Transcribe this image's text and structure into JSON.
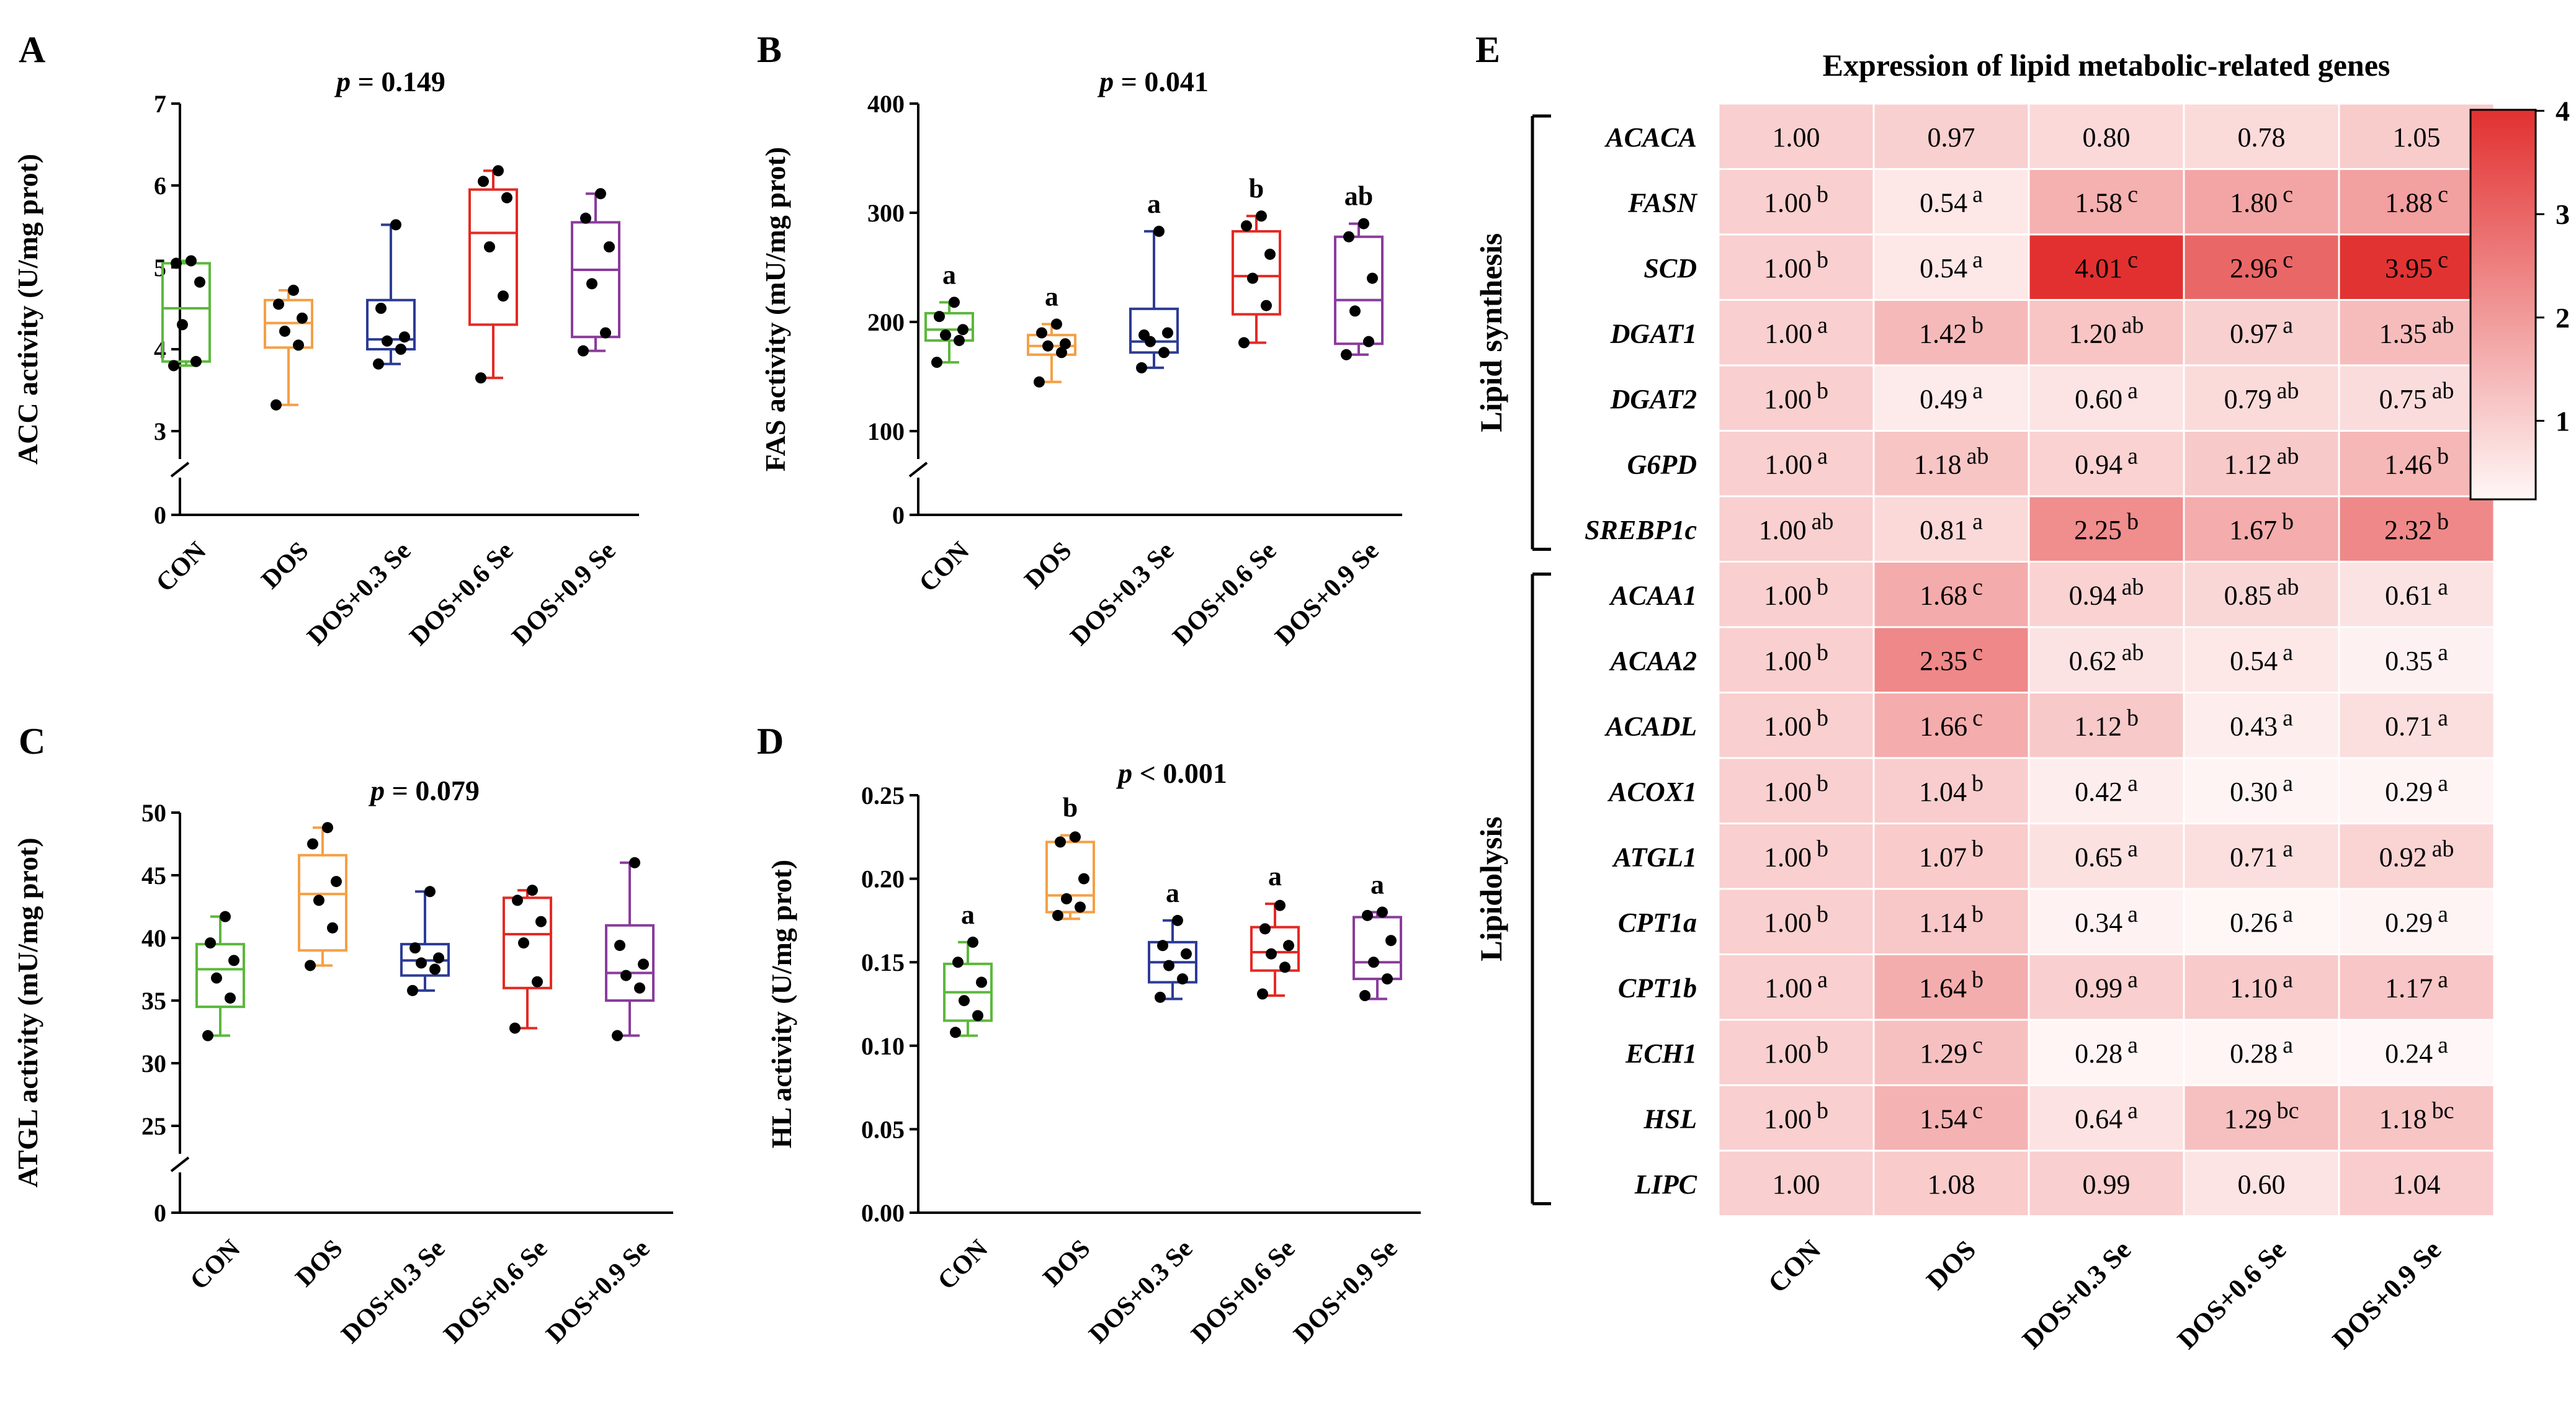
{
  "groups": [
    "CON",
    "DOS",
    "DOS+0.3 Se",
    "DOS+0.6 Se",
    "DOS+0.9 Se"
  ],
  "group_colors": [
    "#5cb83c",
    "#f4a046",
    "#2c3c94",
    "#e32a24",
    "#8a3c9c"
  ],
  "chart_data": [
    {
      "panel": "A",
      "type": "box",
      "pvalue": "p = 0.149",
      "p_symbol": "p",
      "p_rest": " = 0.149",
      "ylabel": "ACC activity (U/mg prot)",
      "ylim": [
        3,
        7
      ],
      "ticks": [
        "3",
        "4",
        "5",
        "6",
        "7"
      ],
      "zero_label": "0",
      "letters": [
        "",
        "",
        "",
        "",
        ""
      ],
      "boxes": [
        {
          "q1": 3.85,
          "median": 4.5,
          "q3": 5.05,
          "min": 3.8,
          "max": 5.08,
          "points": [
            3.8,
            3.85,
            4.3,
            4.82,
            5.05,
            5.08
          ]
        },
        {
          "q1": 4.02,
          "median": 4.32,
          "q3": 4.6,
          "min": 3.32,
          "max": 4.72,
          "points": [
            3.32,
            4.05,
            4.22,
            4.38,
            4.55,
            4.72
          ]
        },
        {
          "q1": 4.0,
          "median": 4.12,
          "q3": 4.6,
          "min": 3.82,
          "max": 5.52,
          "points": [
            3.82,
            4.0,
            4.1,
            4.15,
            4.5,
            5.52
          ]
        },
        {
          "q1": 4.3,
          "median": 5.42,
          "q3": 5.95,
          "min": 3.65,
          "max": 6.18,
          "points": [
            3.65,
            4.65,
            5.25,
            5.85,
            6.05,
            6.18
          ]
        },
        {
          "q1": 4.15,
          "median": 4.97,
          "q3": 5.55,
          "min": 3.98,
          "max": 5.9,
          "points": [
            3.98,
            4.2,
            4.8,
            5.25,
            5.6,
            5.9
          ]
        }
      ]
    },
    {
      "panel": "B",
      "type": "box",
      "pvalue": "p = 0.041",
      "p_symbol": "p",
      "p_rest": " = 0.041",
      "ylabel": "FAS activity (mU/mg prot)",
      "ylim": [
        100,
        400
      ],
      "ticks": [
        "100",
        "200",
        "300",
        "400"
      ],
      "zero_label": "0",
      "letters": [
        "a",
        "a",
        "a",
        "b",
        "ab"
      ],
      "boxes": [
        {
          "q1": 183,
          "median": 193,
          "q3": 208,
          "min": 163,
          "max": 218,
          "points": [
            163,
            183,
            188,
            193,
            205,
            218
          ]
        },
        {
          "q1": 170,
          "median": 178,
          "q3": 188,
          "min": 145,
          "max": 198,
          "points": [
            145,
            172,
            178,
            180,
            190,
            198
          ]
        },
        {
          "q1": 172,
          "median": 182,
          "q3": 212,
          "min": 158,
          "max": 283,
          "points": [
            158,
            172,
            182,
            190,
            188,
            283
          ]
        },
        {
          "q1": 207,
          "median": 242,
          "q3": 283,
          "min": 181,
          "max": 297,
          "points": [
            181,
            215,
            240,
            262,
            288,
            297
          ]
        },
        {
          "q1": 180,
          "median": 220,
          "q3": 278,
          "min": 170,
          "max": 290,
          "points": [
            170,
            182,
            210,
            240,
            278,
            290
          ]
        }
      ]
    },
    {
      "panel": "C",
      "type": "box",
      "pvalue": "p = 0.079",
      "p_symbol": "p",
      "p_rest": " = 0.079",
      "ylabel": "ATGL activity (mU/mg prot)",
      "ylim": [
        25,
        50
      ],
      "ticks": [
        "25",
        "30",
        "35",
        "40",
        "45",
        "50"
      ],
      "zero_label": "0",
      "letters": [
        "",
        "",
        "",
        "",
        ""
      ],
      "boxes": [
        {
          "q1": 34.5,
          "median": 37.5,
          "q3": 39.5,
          "min": 32.2,
          "max": 41.7,
          "points": [
            32.2,
            35.2,
            36.8,
            38.2,
            39.6,
            41.7
          ]
        },
        {
          "q1": 39.0,
          "median": 43.5,
          "q3": 46.6,
          "min": 37.8,
          "max": 48.8,
          "points": [
            37.8,
            40.8,
            43.0,
            44.5,
            47.5,
            48.8
          ]
        },
        {
          "q1": 37.0,
          "median": 38.2,
          "q3": 39.5,
          "min": 35.8,
          "max": 43.7,
          "points": [
            35.8,
            37.5,
            38.0,
            38.4,
            39.2,
            43.7
          ]
        },
        {
          "q1": 36.0,
          "median": 40.3,
          "q3": 43.2,
          "min": 32.8,
          "max": 43.8,
          "points": [
            32.8,
            36.5,
            39.6,
            41.3,
            43.0,
            43.8
          ]
        },
        {
          "q1": 35.0,
          "median": 37.2,
          "q3": 41.0,
          "min": 32.2,
          "max": 46.0,
          "points": [
            32.2,
            36.0,
            37.0,
            37.9,
            39.4,
            46.0
          ]
        }
      ]
    },
    {
      "panel": "D",
      "type": "box",
      "pvalue": "p < 0.001",
      "p_symbol": "p",
      "p_rest": " < 0.001",
      "ylabel": "HL activity (U/mg prot)",
      "ylim": [
        0,
        0.25
      ],
      "ticks": [
        "0.00",
        "0.05",
        "0.10",
        "0.15",
        "0.20",
        "0.25"
      ],
      "zero_label": "",
      "letters": [
        "a",
        "b",
        "a",
        "a",
        "a"
      ],
      "boxes": [
        {
          "q1": 0.115,
          "median": 0.132,
          "q3": 0.149,
          "min": 0.106,
          "max": 0.162,
          "points": [
            0.108,
            0.118,
            0.127,
            0.138,
            0.15,
            0.162
          ]
        },
        {
          "q1": 0.18,
          "median": 0.19,
          "q3": 0.222,
          "min": 0.176,
          "max": 0.226,
          "points": [
            0.178,
            0.183,
            0.188,
            0.2,
            0.222,
            0.225
          ]
        },
        {
          "q1": 0.138,
          "median": 0.15,
          "q3": 0.162,
          "min": 0.128,
          "max": 0.175,
          "points": [
            0.129,
            0.14,
            0.148,
            0.155,
            0.16,
            0.175
          ]
        },
        {
          "q1": 0.145,
          "median": 0.156,
          "q3": 0.171,
          "min": 0.13,
          "max": 0.185,
          "points": [
            0.131,
            0.147,
            0.155,
            0.16,
            0.17,
            0.184
          ]
        },
        {
          "q1": 0.14,
          "median": 0.15,
          "q3": 0.177,
          "min": 0.128,
          "max": 0.18,
          "points": [
            0.13,
            0.14,
            0.15,
            0.163,
            0.178,
            0.18
          ]
        }
      ]
    },
    {
      "panel": "E",
      "type": "heatmap",
      "title": "Expression of lipid metabolic-related genes",
      "columns": [
        "CON",
        "DOS",
        "DOS+0.3 Se",
        "DOS+0.6 Se",
        "DOS+0.9 Se"
      ],
      "categories": [
        {
          "label": "Lipid synthesis",
          "from": 0,
          "to": 6
        },
        {
          "label": "Lipidolysis",
          "from": 7,
          "to": 16
        }
      ],
      "rows": [
        {
          "gene": "ACACA",
          "values": [
            1.0,
            0.97,
            0.8,
            0.78,
            1.05
          ],
          "display": [
            "1.00",
            "0.97",
            "0.80",
            "0.78",
            "1.05"
          ],
          "sup": [
            "",
            "",
            "",
            "",
            ""
          ]
        },
        {
          "gene": "FASN",
          "values": [
            1.0,
            0.54,
            1.58,
            1.8,
            1.88
          ],
          "display": [
            "1.00",
            "0.54",
            "1.58",
            "1.80",
            "1.88"
          ],
          "sup": [
            "b",
            "a",
            "c",
            "c",
            "c"
          ]
        },
        {
          "gene": "SCD",
          "values": [
            1.0,
            0.54,
            4.01,
            2.96,
            3.95
          ],
          "display": [
            "1.00",
            "0.54",
            "4.01",
            "2.96",
            "3.95"
          ],
          "sup": [
            "b",
            "a",
            "c",
            "c",
            "c"
          ]
        },
        {
          "gene": "DGAT1",
          "values": [
            1.0,
            1.42,
            1.2,
            0.97,
            1.35
          ],
          "display": [
            "1.00",
            "1.42",
            "1.20",
            "0.97",
            "1.35"
          ],
          "sup": [
            "a",
            "b",
            "ab",
            "a",
            "ab"
          ]
        },
        {
          "gene": "DGAT2",
          "values": [
            1.0,
            0.49,
            0.6,
            0.79,
            0.75
          ],
          "display": [
            "1.00",
            "0.49",
            "0.60",
            "0.79",
            "0.75"
          ],
          "sup": [
            "b",
            "a",
            "a",
            "ab",
            "ab"
          ]
        },
        {
          "gene": "G6PD",
          "values": [
            1.0,
            1.18,
            0.94,
            1.12,
            1.46
          ],
          "display": [
            "1.00",
            "1.18",
            "0.94",
            "1.12",
            "1.46"
          ],
          "sup": [
            "a",
            "ab",
            "a",
            "ab",
            "b"
          ]
        },
        {
          "gene": "SREBP1c",
          "values": [
            1.0,
            0.81,
            2.25,
            1.67,
            2.32
          ],
          "display": [
            "1.00",
            "0.81",
            "2.25",
            "1.67",
            "2.32"
          ],
          "sup": [
            "ab",
            "a",
            "b",
            "b",
            "b"
          ]
        },
        {
          "gene": "ACAA1",
          "values": [
            1.0,
            1.68,
            0.94,
            0.85,
            0.61
          ],
          "display": [
            "1.00",
            "1.68",
            "0.94",
            "0.85",
            "0.61"
          ],
          "sup": [
            "b",
            "c",
            "ab",
            "ab",
            "a"
          ]
        },
        {
          "gene": "ACAA2",
          "values": [
            1.0,
            2.35,
            0.62,
            0.54,
            0.35
          ],
          "display": [
            "1.00",
            "2.35",
            "0.62",
            "0.54",
            "0.35"
          ],
          "sup": [
            "b",
            "c",
            "ab",
            "a",
            "a"
          ]
        },
        {
          "gene": "ACADL",
          "values": [
            1.0,
            1.66,
            1.12,
            0.43,
            0.71
          ],
          "display": [
            "1.00",
            "1.66",
            "1.12",
            "0.43",
            "0.71"
          ],
          "sup": [
            "b",
            "c",
            "b",
            "a",
            "a"
          ]
        },
        {
          "gene": "ACOX1",
          "values": [
            1.0,
            1.04,
            0.42,
            0.3,
            0.29
          ],
          "display": [
            "1.00",
            "1.04",
            "0.42",
            "0.30",
            "0.29"
          ],
          "sup": [
            "b",
            "b",
            "a",
            "a",
            "a"
          ]
        },
        {
          "gene": "ATGL1",
          "values": [
            1.0,
            1.07,
            0.65,
            0.71,
            0.92
          ],
          "display": [
            "1.00",
            "1.07",
            "0.65",
            "0.71",
            "0.92"
          ],
          "sup": [
            "b",
            "b",
            "a",
            "a",
            "ab"
          ]
        },
        {
          "gene": "CPT1a",
          "values": [
            1.0,
            1.14,
            0.34,
            0.26,
            0.29
          ],
          "display": [
            "1.00",
            "1.14",
            "0.34",
            "0.26",
            "0.29"
          ],
          "sup": [
            "b",
            "b",
            "a",
            "a",
            "a"
          ]
        },
        {
          "gene": "CPT1b",
          "values": [
            1.0,
            1.64,
            0.99,
            1.1,
            1.17
          ],
          "display": [
            "1.00",
            "1.64",
            "0.99",
            "1.10",
            "1.17"
          ],
          "sup": [
            "a",
            "b",
            "a",
            "a",
            "a"
          ]
        },
        {
          "gene": "ECH1",
          "values": [
            1.0,
            1.29,
            0.28,
            0.28,
            0.24
          ],
          "display": [
            "1.00",
            "1.29",
            "0.28",
            "0.28",
            "0.24"
          ],
          "sup": [
            "b",
            "c",
            "a",
            "a",
            "a"
          ]
        },
        {
          "gene": "HSL",
          "values": [
            1.0,
            1.54,
            0.64,
            1.29,
            1.18
          ],
          "display": [
            "1.00",
            "1.54",
            "0.64",
            "1.29",
            "1.18"
          ],
          "sup": [
            "b",
            "c",
            "a",
            "bc",
            "bc"
          ]
        },
        {
          "gene": "LIPC",
          "values": [
            1.0,
            1.08,
            0.99,
            0.6,
            1.04
          ],
          "display": [
            "1.00",
            "1.08",
            "0.99",
            "0.60",
            "1.04"
          ],
          "sup": [
            "",
            "",
            "",
            "",
            ""
          ]
        }
      ],
      "colorbar": {
        "min": 0.24,
        "max": 4.01,
        "ticks": [
          1,
          2,
          3,
          4
        ],
        "tick_labels": [
          "1",
          "2",
          "3",
          "4"
        ],
        "low_color": "#fff7f7",
        "high_color": "#e23030"
      }
    }
  ]
}
